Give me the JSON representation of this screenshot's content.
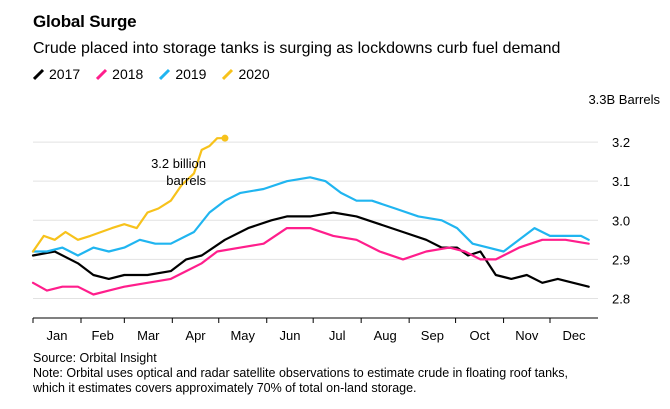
{
  "header": {
    "title": "Global Surge",
    "subtitle": "Crude placed into storage tanks is surging as lockdowns curb fuel demand"
  },
  "footer": {
    "source": "Source: Orbital Insight",
    "note_line1": "Note: Orbital uses optical and radar satellite observations to estimate crude in floating roof tanks,",
    "note_line2": "which it estimates covers approximately 70% of total on-land storage."
  },
  "colors": {
    "2017": "#000000",
    "2018": "#ff1e8c",
    "2019": "#20b5f0",
    "2020": "#f7c21b",
    "axis": "#000000",
    "grid": "#e2e2e2"
  },
  "chart_data": {
    "type": "line",
    "title": "Global Surge",
    "ylabel": "3.3B Barrels",
    "ylim": [
      2.75,
      3.3
    ],
    "yticks": [
      2.8,
      2.9,
      3.0,
      3.1,
      3.2
    ],
    "ytick_labels": [
      "2.8",
      "2.9",
      "3.0",
      "3.1",
      "3.2"
    ],
    "categories": [
      "Jan",
      "Feb",
      "Mar",
      "Apr",
      "May",
      "Jun",
      "Jul",
      "Aug",
      "Sep",
      "Oct",
      "Nov",
      "Dec"
    ],
    "x_unit": "day of year",
    "xlim": [
      1,
      366
    ],
    "grid": true,
    "legend_position": "top-left",
    "annotation": {
      "line1": "3.2 billion",
      "line2": "barrels",
      "series": "2020"
    },
    "series": [
      {
        "name": "2017",
        "x": [
          1,
          15,
          30,
          40,
          50,
          60,
          75,
          90,
          100,
          110,
          125,
          140,
          155,
          165,
          180,
          195,
          210,
          225,
          240,
          255,
          265,
          275,
          282,
          290,
          300,
          310,
          320,
          330,
          340,
          350,
          360
        ],
        "y": [
          2.91,
          2.92,
          2.89,
          2.86,
          2.85,
          2.86,
          2.86,
          2.87,
          2.9,
          2.91,
          2.95,
          2.98,
          3.0,
          3.01,
          3.01,
          3.02,
          3.01,
          2.99,
          2.97,
          2.95,
          2.93,
          2.93,
          2.91,
          2.92,
          2.86,
          2.85,
          2.86,
          2.84,
          2.85,
          2.84,
          2.83
        ]
      },
      {
        "name": "2018",
        "x": [
          1,
          10,
          20,
          30,
          40,
          50,
          60,
          75,
          90,
          100,
          110,
          120,
          135,
          150,
          165,
          180,
          195,
          210,
          225,
          240,
          255,
          270,
          280,
          290,
          300,
          315,
          330,
          345,
          360
        ],
        "y": [
          2.84,
          2.82,
          2.83,
          2.83,
          2.81,
          2.82,
          2.83,
          2.84,
          2.85,
          2.87,
          2.89,
          2.92,
          2.93,
          2.94,
          2.98,
          2.98,
          2.96,
          2.95,
          2.92,
          2.9,
          2.92,
          2.93,
          2.92,
          2.9,
          2.9,
          2.93,
          2.95,
          2.95,
          2.94
        ]
      },
      {
        "name": "2019",
        "x": [
          1,
          10,
          20,
          30,
          40,
          50,
          60,
          70,
          80,
          90,
          105,
          115,
          125,
          135,
          150,
          165,
          180,
          190,
          200,
          210,
          220,
          235,
          250,
          265,
          275,
          285,
          295,
          305,
          315,
          325,
          335,
          345,
          355,
          360
        ],
        "y": [
          2.92,
          2.92,
          2.93,
          2.91,
          2.93,
          2.92,
          2.93,
          2.95,
          2.94,
          2.94,
          2.97,
          3.02,
          3.05,
          3.07,
          3.08,
          3.1,
          3.11,
          3.1,
          3.07,
          3.05,
          3.05,
          3.03,
          3.01,
          3.0,
          2.98,
          2.94,
          2.93,
          2.92,
          2.95,
          2.98,
          2.96,
          2.96,
          2.96,
          2.95
        ]
      },
      {
        "name": "2020",
        "x": [
          1,
          8,
          15,
          22,
          30,
          38,
          45,
          52,
          60,
          68,
          75,
          82,
          90,
          97,
          105,
          110,
          115,
          120,
          125
        ],
        "y": [
          2.92,
          2.96,
          2.95,
          2.97,
          2.95,
          2.96,
          2.97,
          2.98,
          2.99,
          2.98,
          3.02,
          3.03,
          3.05,
          3.09,
          3.12,
          3.18,
          3.19,
          3.21,
          3.21
        ]
      }
    ]
  }
}
